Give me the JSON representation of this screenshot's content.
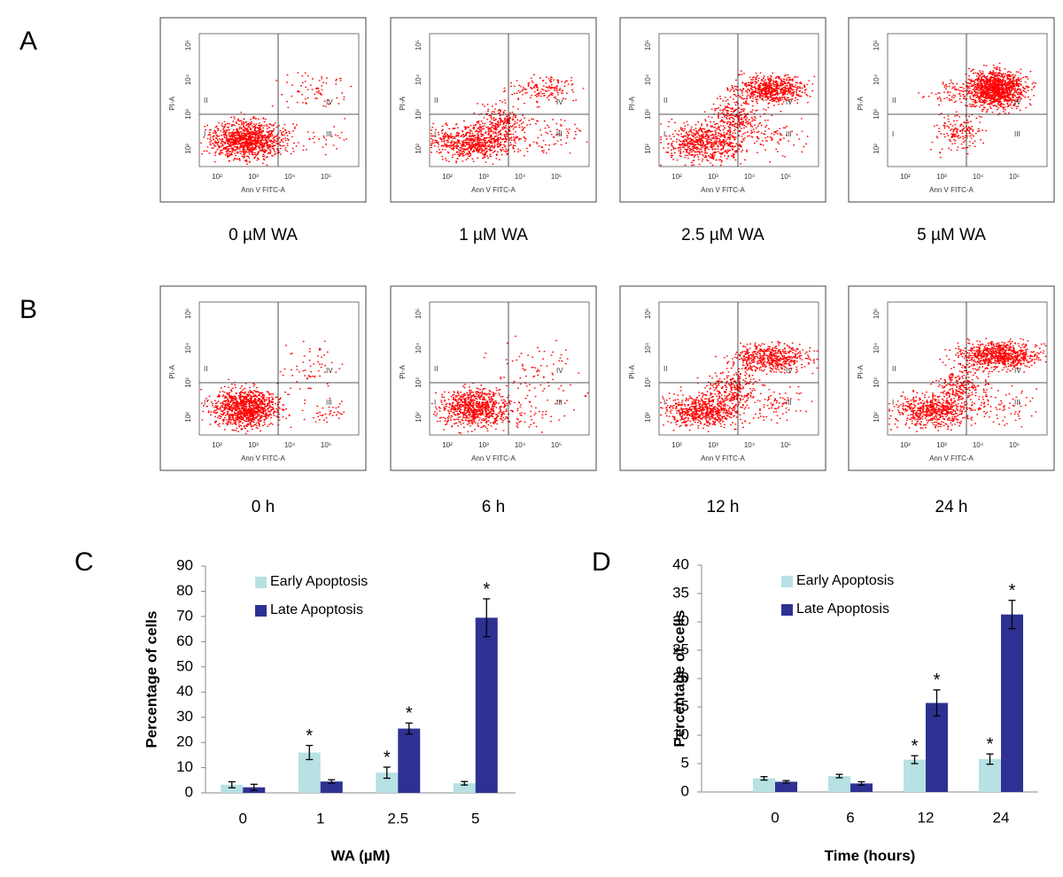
{
  "flow": {
    "axis": {
      "x_label": "Ann V FITC-A",
      "y_label": "PI-A",
      "ticks": [
        "10²",
        "10³",
        "10⁴",
        "10⁵"
      ],
      "quadrants": [
        "I",
        "II",
        "III",
        "IV"
      ]
    },
    "rows": [
      {
        "label": "A",
        "captions": [
          "0 µM WA",
          "1 µM WA",
          "2.5 µM WA",
          "5 µM WA"
        ]
      },
      {
        "label": "B",
        "captions": [
          "0 h",
          "6 h",
          "12 h",
          "24 h"
        ]
      }
    ]
  },
  "chart_data": [
    {
      "type": "bar",
      "panel": "C",
      "categories": [
        "0",
        "1",
        "2.5",
        "5"
      ],
      "x_label": "WA (µM)",
      "y_label": "Percentage of cells",
      "ylim": [
        0,
        90
      ],
      "yticks": [
        0,
        10,
        20,
        30,
        40,
        50,
        60,
        70,
        80,
        90
      ],
      "series": [
        {
          "name": "Early Apoptosis",
          "color": "#b7e1e3",
          "values": [
            3.2,
            16,
            8,
            3.8
          ],
          "errors": [
            1.2,
            2.8,
            2.2,
            0.7
          ],
          "markers": [
            null,
            "*",
            "*",
            null
          ]
        },
        {
          "name": "Late Apoptosis",
          "color": "#2e3192",
          "values": [
            2.2,
            4.5,
            25.5,
            69.5
          ],
          "errors": [
            1.2,
            0.7,
            2.2,
            7.5
          ],
          "markers": [
            null,
            null,
            "*",
            "*"
          ]
        }
      ]
    },
    {
      "type": "bar",
      "panel": "D",
      "categories": [
        "0",
        "6",
        "12",
        "24"
      ],
      "x_label": "Time (hours)",
      "y_label": "Percentage of cells",
      "ylim": [
        0,
        40
      ],
      "yticks": [
        0,
        5,
        10,
        15,
        20,
        25,
        30,
        35,
        40
      ],
      "series": [
        {
          "name": "Early Apoptosis",
          "color": "#b7e1e3",
          "values": [
            2.4,
            2.8,
            5.7,
            5.8
          ],
          "errors": [
            0.3,
            0.3,
            0.7,
            0.9
          ],
          "markers": [
            null,
            null,
            "*",
            "*"
          ]
        },
        {
          "name": "Late Apoptosis",
          "color": "#2e3192",
          "values": [
            1.8,
            1.5,
            15.7,
            31.3
          ],
          "errors": [
            0.2,
            0.3,
            2.3,
            2.5
          ],
          "markers": [
            null,
            null,
            "*",
            "*"
          ]
        }
      ]
    }
  ]
}
